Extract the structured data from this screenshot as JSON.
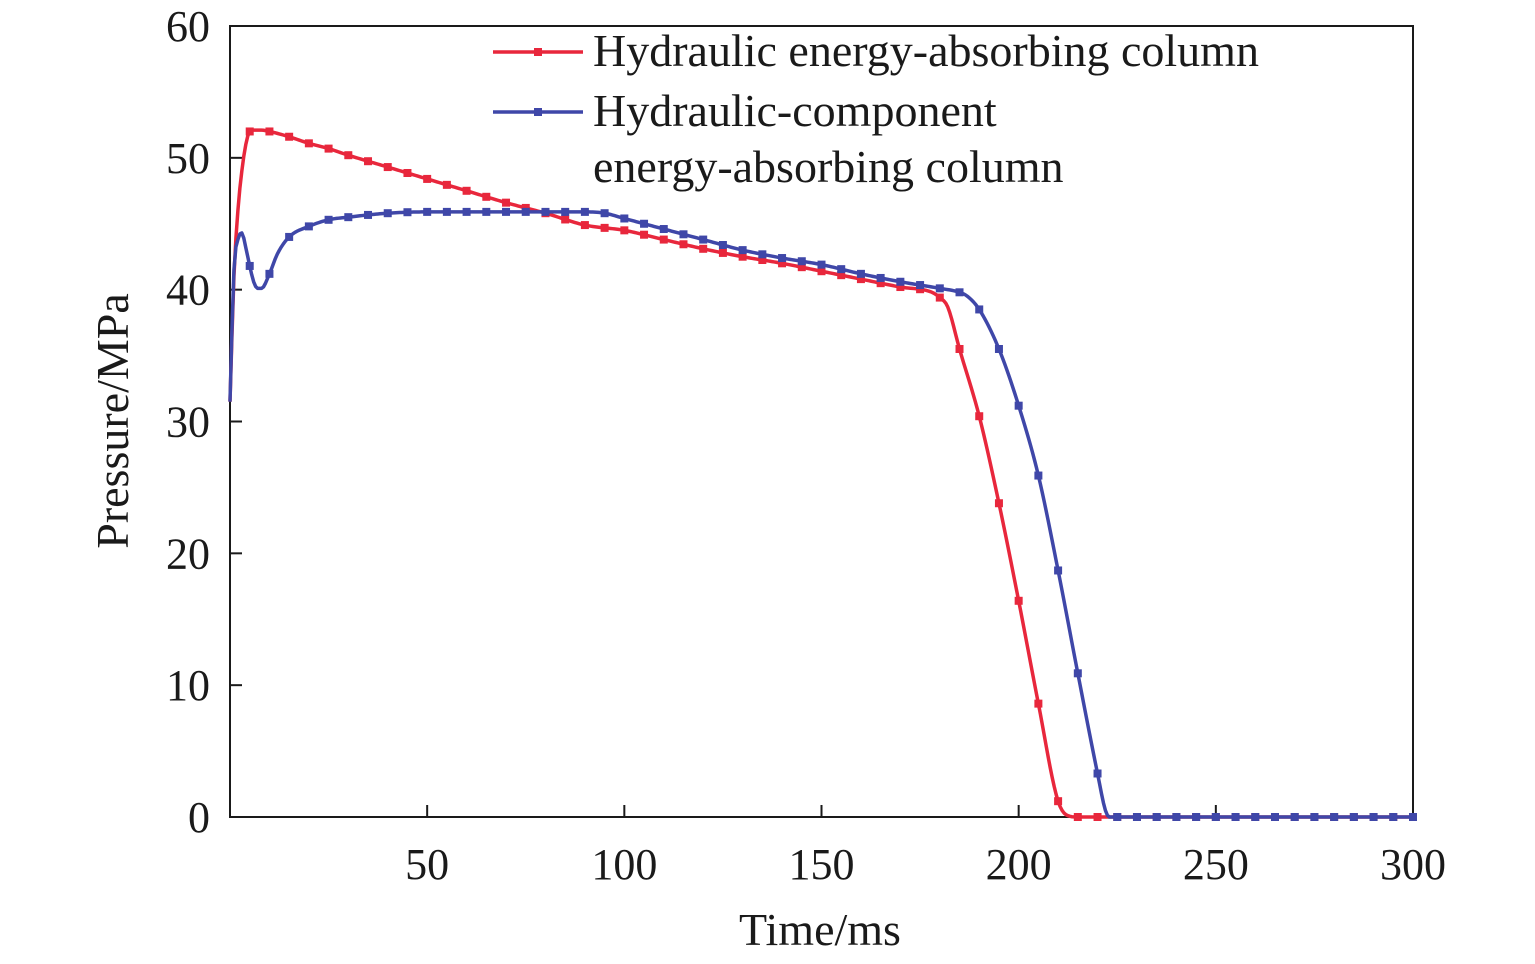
{
  "chart_data": {
    "type": "line",
    "title": "",
    "xlabel": "Time/ms",
    "ylabel": "Pressure/MPa",
    "xlim": [
      0,
      300
    ],
    "ylim": [
      0,
      60
    ],
    "xticks": [
      50,
      100,
      150,
      200,
      250,
      300
    ],
    "yticks": [
      0,
      10,
      20,
      30,
      40,
      50,
      60
    ],
    "grid": false,
    "legend_position": "top-right",
    "series": [
      {
        "name": "Hydraulic energy-absorbing column",
        "legend_lines": [
          "Hydraulic energy-absorbing column"
        ],
        "color": "#e8273c",
        "x": [
          0,
          1,
          2,
          3,
          4,
          5,
          6,
          8,
          10,
          15,
          20,
          25,
          30,
          40,
          50,
          60,
          70,
          80,
          90,
          100,
          110,
          120,
          130,
          140,
          150,
          160,
          170,
          178,
          180,
          182,
          185,
          190,
          195,
          200,
          205,
          210,
          213,
          215,
          220,
          230,
          240,
          250,
          260,
          270,
          280,
          290,
          300
        ],
        "y": [
          31.5,
          41,
          46,
          49,
          51,
          52,
          52.1,
          52.1,
          52,
          51.6,
          51.1,
          50.7,
          50.2,
          49.3,
          48.4,
          47.5,
          46.6,
          45.8,
          44.9,
          44.5,
          43.8,
          43.1,
          42.5,
          42,
          41.4,
          40.8,
          40.2,
          39.8,
          39.4,
          38.7,
          35.5,
          30.4,
          23.8,
          16.4,
          8.6,
          1.2,
          0.05,
          0,
          0,
          0,
          0,
          0,
          0,
          0,
          0,
          0,
          0
        ]
      },
      {
        "name": "Hydraulic-component energy-absorbing column",
        "legend_lines": [
          "Hydraulic-component",
          "energy-absorbing column"
        ],
        "color": "#3f47a8",
        "x": [
          0,
          1,
          2,
          3,
          4,
          5,
          6,
          7,
          8,
          10,
          12,
          15,
          20,
          25,
          30,
          40,
          50,
          60,
          70,
          80,
          90,
          95,
          100,
          110,
          120,
          130,
          140,
          150,
          160,
          170,
          180,
          185,
          187,
          190,
          195,
          200,
          205,
          210,
          215,
          220,
          222,
          223,
          225,
          230,
          240,
          250,
          260,
          270,
          280,
          290,
          300
        ],
        "y": [
          31.5,
          41.5,
          43.8,
          44.3,
          43.2,
          41.8,
          40.6,
          40.1,
          40.1,
          41.2,
          42.7,
          44,
          44.8,
          45.3,
          45.5,
          45.8,
          45.9,
          45.9,
          45.9,
          45.9,
          45.9,
          45.8,
          45.4,
          44.6,
          43.8,
          43,
          42.4,
          41.9,
          41.2,
          40.6,
          40.1,
          39.8,
          39.5,
          38.5,
          35.5,
          31.2,
          25.9,
          18.7,
          10.9,
          3.3,
          0.5,
          0,
          0,
          0,
          0,
          0,
          0,
          0,
          0,
          0,
          0
        ]
      }
    ]
  }
}
